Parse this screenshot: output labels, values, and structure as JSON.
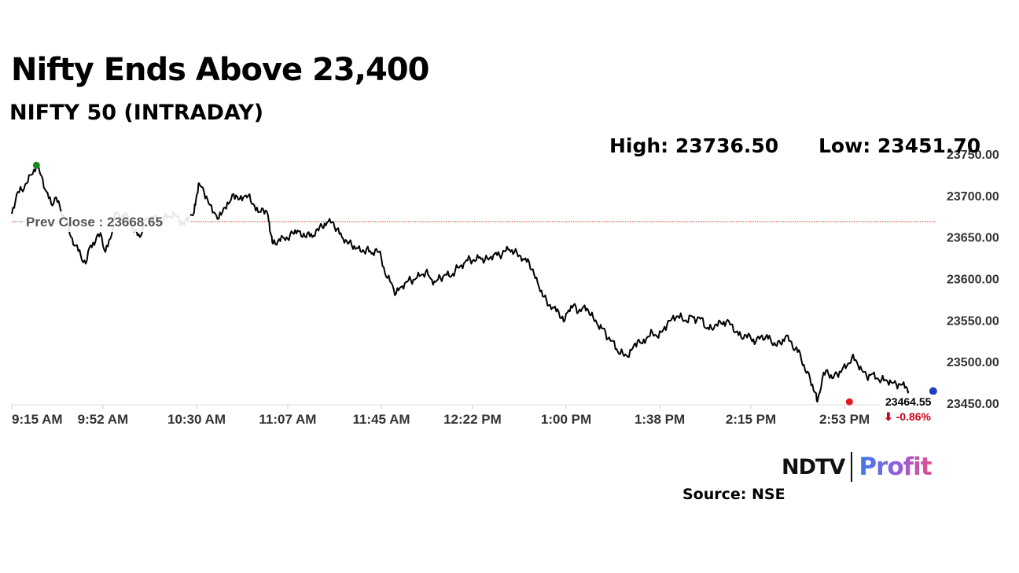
{
  "header": {
    "title": "Nifty Ends Above 23,400",
    "subtitle": "NIFTY 50 (INTRADAY)"
  },
  "stats": {
    "high": "High: 23736.50",
    "low": "Low: 23451.70"
  },
  "brand": {
    "ndtv": "NDTV",
    "profit": "Profit"
  },
  "source": "Source: NSE",
  "chart_data": {
    "type": "line",
    "title": "NIFTY 50 (INTRADAY)",
    "xlabel": "",
    "ylabel": "",
    "ylim": [
      23450,
      23750
    ],
    "y_ticks": [
      23450,
      23500,
      23550,
      23600,
      23650,
      23700,
      23750
    ],
    "y_tick_labels": [
      "23450.00",
      "23500.00",
      "23550.00",
      "23600.00",
      "23650.00",
      "23700.00",
      "23750.00"
    ],
    "x_tick_labels": [
      "9:15 AM",
      "9:52 AM",
      "10:30 AM",
      "11:07 AM",
      "11:45 AM",
      "12:22 PM",
      "1:00 PM",
      "1:38 PM",
      "2:15 PM",
      "2:53 PM"
    ],
    "x_tick_minutes": [
      555,
      592,
      630,
      667,
      705,
      742,
      780,
      818,
      855,
      893
    ],
    "xlim_minutes": [
      555,
      930
    ],
    "grid": false,
    "prev_close": {
      "label": "Prev Close : 23668.65",
      "value": 23668.65
    },
    "high": {
      "value": 23736.5,
      "minute": 565
    },
    "low": {
      "value": 23451.7,
      "minute": 895
    },
    "last": {
      "value_label": "23464.55",
      "change_label": "⬇ -0.86%",
      "value": 23464.55,
      "minute": 929
    },
    "series": [
      {
        "points": [
          [
            555,
            23678
          ],
          [
            557,
            23702
          ],
          [
            559,
            23707
          ],
          [
            561,
            23715
          ],
          [
            563,
            23725
          ],
          [
            565,
            23736.5
          ],
          [
            567,
            23724
          ],
          [
            569,
            23705
          ],
          [
            571,
            23690
          ],
          [
            573,
            23698
          ],
          [
            575,
            23680
          ],
          [
            577,
            23672
          ],
          [
            579,
            23650
          ],
          [
            581,
            23640
          ],
          [
            583,
            23628
          ],
          [
            585,
            23618
          ],
          [
            587,
            23640
          ],
          [
            589,
            23645
          ],
          [
            591,
            23655
          ],
          [
            593,
            23632
          ],
          [
            595,
            23648
          ],
          [
            597,
            23680
          ],
          [
            599,
            23673
          ],
          [
            601,
            23678
          ],
          [
            603,
            23668
          ],
          [
            605,
            23657
          ],
          [
            607,
            23650
          ],
          [
            609,
            23671
          ],
          [
            611,
            23670
          ],
          [
            613,
            23676
          ],
          [
            615,
            23664
          ],
          [
            617,
            23674
          ],
          [
            619,
            23675
          ],
          [
            621,
            23678
          ],
          [
            623,
            23670
          ],
          [
            625,
            23665
          ],
          [
            627,
            23675
          ],
          [
            629,
            23680
          ],
          [
            630,
            23700
          ],
          [
            631,
            23715
          ],
          [
            633,
            23705
          ],
          [
            635,
            23690
          ],
          [
            637,
            23680
          ],
          [
            639,
            23672
          ],
          [
            641,
            23685
          ],
          [
            643,
            23690
          ],
          [
            645,
            23702
          ],
          [
            647,
            23695
          ],
          [
            649,
            23698
          ],
          [
            651,
            23700
          ],
          [
            653,
            23690
          ],
          [
            655,
            23680
          ],
          [
            657,
            23684
          ],
          [
            659,
            23676
          ],
          [
            660,
            23655
          ],
          [
            661,
            23642
          ],
          [
            663,
            23645
          ],
          [
            665,
            23650
          ],
          [
            667,
            23648
          ],
          [
            669,
            23655
          ],
          [
            671,
            23658
          ],
          [
            673,
            23650
          ],
          [
            675,
            23655
          ],
          [
            677,
            23650
          ],
          [
            679,
            23660
          ],
          [
            681,
            23662
          ],
          [
            683,
            23668
          ],
          [
            685,
            23668
          ],
          [
            687,
            23660
          ],
          [
            689,
            23650
          ],
          [
            691,
            23645
          ],
          [
            693,
            23640
          ],
          [
            695,
            23637
          ],
          [
            697,
            23632
          ],
          [
            699,
            23636
          ],
          [
            701,
            23630
          ],
          [
            703,
            23636
          ],
          [
            705,
            23625
          ],
          [
            707,
            23602
          ],
          [
            709,
            23595
          ],
          [
            711,
            23582
          ],
          [
            713,
            23590
          ],
          [
            715,
            23596
          ],
          [
            717,
            23598
          ],
          [
            719,
            23600
          ],
          [
            721,
            23604
          ],
          [
            723,
            23608
          ],
          [
            725,
            23600
          ],
          [
            727,
            23596
          ],
          [
            729,
            23601
          ],
          [
            731,
            23605
          ],
          [
            733,
            23602
          ],
          [
            735,
            23610
          ],
          [
            737,
            23615
          ],
          [
            739,
            23620
          ],
          [
            741,
            23624
          ],
          [
            743,
            23621
          ],
          [
            745,
            23626
          ],
          [
            747,
            23622
          ],
          [
            749,
            23625
          ],
          [
            751,
            23630
          ],
          [
            753,
            23628
          ],
          [
            755,
            23633
          ],
          [
            757,
            23635
          ],
          [
            759,
            23632
          ],
          [
            761,
            23628
          ],
          [
            763,
            23623
          ],
          [
            765,
            23620
          ],
          [
            767,
            23605
          ],
          [
            769,
            23590
          ],
          [
            771,
            23578
          ],
          [
            773,
            23568
          ],
          [
            775,
            23565
          ],
          [
            777,
            23560
          ],
          [
            779,
            23548
          ],
          [
            781,
            23562
          ],
          [
            783,
            23568
          ],
          [
            785,
            23560
          ],
          [
            787,
            23566
          ],
          [
            789,
            23562
          ],
          [
            791,
            23553
          ],
          [
            793,
            23543
          ],
          [
            795,
            23540
          ],
          [
            797,
            23528
          ],
          [
            799,
            23525
          ],
          [
            801,
            23512
          ],
          [
            803,
            23510
          ],
          [
            805,
            23506
          ],
          [
            807,
            23516
          ],
          [
            809,
            23525
          ],
          [
            811,
            23522
          ],
          [
            813,
            23530
          ],
          [
            815,
            23535
          ],
          [
            817,
            23530
          ],
          [
            819,
            23536
          ],
          [
            821,
            23545
          ],
          [
            823,
            23552
          ],
          [
            825,
            23555
          ],
          [
            827,
            23553
          ],
          [
            829,
            23548
          ],
          [
            831,
            23555
          ],
          [
            833,
            23550
          ],
          [
            835,
            23553
          ],
          [
            837,
            23540
          ],
          [
            839,
            23540
          ],
          [
            841,
            23545
          ],
          [
            843,
            23546
          ],
          [
            845,
            23548
          ],
          [
            847,
            23545
          ],
          [
            849,
            23536
          ],
          [
            851,
            23530
          ],
          [
            853,
            23532
          ],
          [
            855,
            23528
          ],
          [
            857,
            23524
          ],
          [
            859,
            23530
          ],
          [
            861,
            23530
          ],
          [
            863,
            23527
          ],
          [
            865,
            23520
          ],
          [
            867,
            23522
          ],
          [
            869,
            23530
          ],
          [
            871,
            23525
          ],
          [
            873,
            23515
          ],
          [
            875,
            23510
          ],
          [
            877,
            23490
          ],
          [
            879,
            23480
          ],
          [
            881,
            23463
          ],
          [
            882,
            23451.7
          ],
          [
            884,
            23480
          ],
          [
            886,
            23490
          ],
          [
            888,
            23480
          ],
          [
            890,
            23485
          ],
          [
            892,
            23490
          ],
          [
            894,
            23495
          ],
          [
            896,
            23505
          ],
          [
            898,
            23500
          ],
          [
            900,
            23490
          ],
          [
            902,
            23482
          ],
          [
            904,
            23485
          ],
          [
            906,
            23480
          ],
          [
            908,
            23478
          ],
          [
            910,
            23478
          ],
          [
            912,
            23475
          ],
          [
            914,
            23473
          ],
          [
            916,
            23472
          ],
          [
            918,
            23470
          ],
          [
            919,
            23464.55
          ]
        ]
      }
    ]
  }
}
